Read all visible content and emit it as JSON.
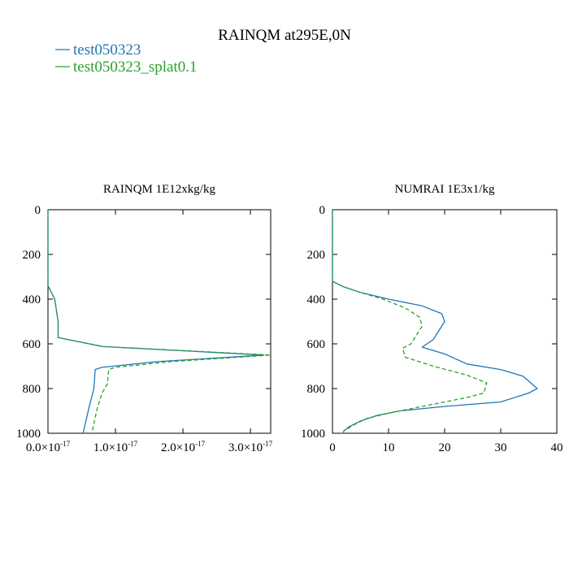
{
  "figure": {
    "title": "RAINQM at295E,0N",
    "legend": [
      {
        "label": "test050323",
        "color": "#1f77b4",
        "dash": "solid"
      },
      {
        "label": "test050323_splat0.1",
        "color": "#2ca02c",
        "dash": "dashed"
      }
    ]
  },
  "chart_data": [
    {
      "type": "line",
      "title": "RAINQM  1E12xkg/kg",
      "xlabel": "",
      "ylabel": "",
      "xlim": [
        0,
        3.3e-17
      ],
      "ylim": [
        1000,
        0
      ],
      "y_inverted": true,
      "grid": false,
      "x_ticks": [
        {
          "value": 0.0,
          "mant": "0.0",
          "exp": "-17"
        },
        {
          "value": 1e-17,
          "mant": "1.0",
          "exp": "-17"
        },
        {
          "value": 2e-17,
          "mant": "2.0",
          "exp": "-17"
        },
        {
          "value": 3e-17,
          "mant": "3.0",
          "exp": "-17"
        }
      ],
      "y_ticks": [
        0,
        200,
        400,
        600,
        800,
        1000
      ],
      "series": [
        {
          "name": "test050323",
          "color": "#1f77b4",
          "dash": "solid",
          "points": [
            [
              0,
              0
            ],
            [
              0,
              340
            ],
            [
              1e-18,
              400
            ],
            [
              1.5e-18,
              500
            ],
            [
              1.5e-18,
              572
            ],
            [
              8e-18,
              612
            ],
            [
              3.2e-17,
              650
            ],
            [
              1.6e-17,
              680
            ],
            [
              8e-18,
              705
            ],
            [
              7e-18,
              715
            ],
            [
              6.8e-18,
              800
            ],
            [
              6.2e-18,
              870
            ],
            [
              5.5e-18,
              960
            ],
            [
              5.2e-18,
              1000
            ]
          ]
        },
        {
          "name": "test050323_splat0.1",
          "color": "#2ca02c",
          "dash": "dashed",
          "points": [
            [
              0,
              0
            ],
            [
              0,
              340
            ],
            [
              1e-18,
              400
            ],
            [
              1.5e-18,
              500
            ],
            [
              1.5e-18,
              572
            ],
            [
              8.2e-18,
              612
            ],
            [
              3.3e-17,
              650
            ],
            [
              1.8e-17,
              680
            ],
            [
              1e-17,
              705
            ],
            [
              9e-18,
              715
            ],
            [
              8.8e-18,
              780
            ],
            [
              8e-18,
              820
            ],
            [
              7.2e-18,
              900
            ],
            [
              6.5e-18,
              1000
            ]
          ]
        }
      ]
    },
    {
      "type": "line",
      "title": "NUMRAI  1E3x1/kg",
      "xlabel": "",
      "ylabel": "",
      "xlim": [
        0,
        40
      ],
      "ylim": [
        1000,
        0
      ],
      "y_inverted": true,
      "grid": false,
      "x_ticks": [
        0,
        10,
        20,
        30,
        40
      ],
      "y_ticks": [
        0,
        200,
        400,
        600,
        800,
        1000
      ],
      "series": [
        {
          "name": "test050323",
          "color": "#1f77b4",
          "dash": "solid",
          "points": [
            [
              0,
              0
            ],
            [
              0,
              320
            ],
            [
              2,
              345
            ],
            [
              5,
              370
            ],
            [
              10,
              400
            ],
            [
              16,
              430
            ],
            [
              19.5,
              465
            ],
            [
              20,
              500
            ],
            [
              19,
              540
            ],
            [
              18,
              580
            ],
            [
              16,
              615
            ],
            [
              20,
              645
            ],
            [
              24,
              690
            ],
            [
              30,
              715
            ],
            [
              34,
              745
            ],
            [
              36.5,
              800
            ],
            [
              35,
              820
            ],
            [
              30,
              860
            ],
            [
              20,
              880
            ],
            [
              12,
              900
            ],
            [
              8,
              920
            ],
            [
              5,
              945
            ],
            [
              3,
              970
            ],
            [
              2,
              990
            ],
            [
              2,
              1000
            ]
          ]
        },
        {
          "name": "test050323_splat0.1",
          "color": "#2ca02c",
          "dash": "dashed",
          "points": [
            [
              0,
              0
            ],
            [
              0,
              320
            ],
            [
              2,
              345
            ],
            [
              5,
              370
            ],
            [
              9,
              400
            ],
            [
              13,
              440
            ],
            [
              15.5,
              480
            ],
            [
              16,
              520
            ],
            [
              15,
              560
            ],
            [
              14,
              600
            ],
            [
              12.5,
              620
            ],
            [
              13,
              660
            ],
            [
              18,
              700
            ],
            [
              24,
              740
            ],
            [
              27.5,
              775
            ],
            [
              27,
              820
            ],
            [
              24,
              840
            ],
            [
              16,
              880
            ],
            [
              10,
              910
            ],
            [
              6,
              935
            ],
            [
              4,
              960
            ],
            [
              2,
              990
            ],
            [
              2,
              1000
            ]
          ]
        }
      ]
    }
  ]
}
